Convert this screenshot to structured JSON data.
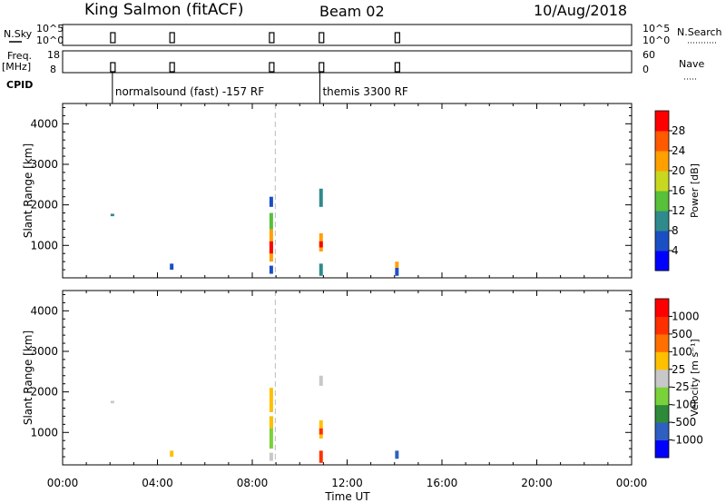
{
  "header": {
    "station": "King Salmon (fitACF)",
    "beam": "Beam 02",
    "date": "10/Aug/2018"
  },
  "strips": {
    "nsky_label": "N.Sky",
    "nsky_ticks": [
      "10^5",
      "10^0"
    ],
    "nsearch_label": "N.Search",
    "nsearch_ticks": [
      "10^5",
      "10^0"
    ],
    "freq_label_1": "Freq.",
    "freq_label_2": "[MHz]",
    "freq_ticks": [
      "18",
      "8"
    ],
    "nave_label": "Nave",
    "nave_ticks": [
      "60",
      "0"
    ],
    "cpid_label": "CPID",
    "cpid_programs": [
      {
        "time_hours": 2.1,
        "name": "normalsound (fast) -157 RF"
      },
      {
        "time_hours": 10.85,
        "name": "themis 3300 RF"
      }
    ]
  },
  "chart_data": [
    {
      "type": "heatmap",
      "name": "power",
      "ylabel": "Slant Range [km]",
      "y_ticks": [
        "1000",
        "2000",
        "3000",
        "4000"
      ],
      "ylim": [
        200,
        4500
      ],
      "xlim": [
        0,
        24
      ],
      "colorbar": {
        "label": "Power [dB]",
        "ticks": [
          "4",
          "8",
          "12",
          "16",
          "20",
          "24",
          "28"
        ],
        "colors": [
          "#0000ff",
          "#1a4fc4",
          "#2f8a8c",
          "#58c03a",
          "#c8d820",
          "#ffa000",
          "#ff5a00",
          "#ff0000"
        ]
      },
      "echo_patches": [
        {
          "t": 2.1,
          "r0": 1720,
          "r1": 1780,
          "level": 2
        },
        {
          "t": 4.6,
          "r0": 400,
          "r1": 550,
          "level": 1
        },
        {
          "t": 8.8,
          "r0": 300,
          "r1": 500,
          "level": 1
        },
        {
          "t": 8.8,
          "r0": 600,
          "r1": 1400,
          "level": 5
        },
        {
          "t": 8.8,
          "r0": 800,
          "r1": 1100,
          "level": 7
        },
        {
          "t": 8.8,
          "r0": 1400,
          "r1": 1800,
          "level": 3
        },
        {
          "t": 8.8,
          "r0": 1950,
          "r1": 2200,
          "level": 1
        },
        {
          "t": 10.9,
          "r0": 250,
          "r1": 550,
          "level": 2
        },
        {
          "t": 10.9,
          "r0": 850,
          "r1": 1300,
          "level": 5
        },
        {
          "t": 10.9,
          "r0": 950,
          "r1": 1100,
          "level": 7
        },
        {
          "t": 10.9,
          "r0": 1950,
          "r1": 2400,
          "level": 2
        },
        {
          "t": 14.1,
          "r0": 250,
          "r1": 450,
          "level": 1
        },
        {
          "t": 14.1,
          "r0": 450,
          "r1": 600,
          "level": 5
        }
      ]
    },
    {
      "type": "heatmap",
      "name": "velocity",
      "xlabel": "Time UT",
      "ylabel": "Slant Range [km]",
      "x_ticks": [
        "00:00",
        "04:00",
        "08:00",
        "12:00",
        "16:00",
        "20:00",
        "00:00"
      ],
      "y_ticks": [
        "1000",
        "2000",
        "3000",
        "4000"
      ],
      "ylim": [
        200,
        4500
      ],
      "xlim": [
        0,
        24
      ],
      "colorbar": {
        "label": "Velocity [m s⁻¹]",
        "ticks": [
          "1000",
          "500",
          "100",
          "25",
          "-25",
          "-100",
          "-500",
          "-1000"
        ],
        "colors": [
          "#0000ff",
          "#2f5fc0",
          "#2e8a3a",
          "#7ad23a",
          "#c8c8c8",
          "#ffc000",
          "#ff7000",
          "#ff3000",
          "#ff0000"
        ]
      },
      "echo_patches": [
        {
          "t": 2.1,
          "r0": 1720,
          "r1": 1780,
          "level": 4
        },
        {
          "t": 4.6,
          "r0": 400,
          "r1": 550,
          "level": 5
        },
        {
          "t": 8.8,
          "r0": 300,
          "r1": 500,
          "level": 4
        },
        {
          "t": 8.8,
          "r0": 600,
          "r1": 1400,
          "level": 3
        },
        {
          "t": 8.8,
          "r0": 1100,
          "r1": 1400,
          "level": 5
        },
        {
          "t": 8.8,
          "r0": 1500,
          "r1": 2100,
          "level": 5
        },
        {
          "t": 10.9,
          "r0": 250,
          "r1": 550,
          "level": 7
        },
        {
          "t": 10.9,
          "r0": 850,
          "r1": 1300,
          "level": 5
        },
        {
          "t": 10.9,
          "r0": 950,
          "r1": 1100,
          "level": 7
        },
        {
          "t": 10.9,
          "r0": 2150,
          "r1": 2400,
          "level": 4
        },
        {
          "t": 14.1,
          "r0": 350,
          "r1": 550,
          "level": 1
        }
      ]
    }
  ]
}
